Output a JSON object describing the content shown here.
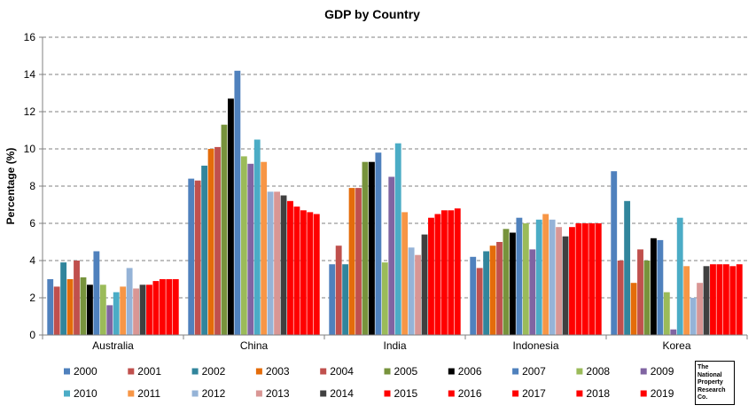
{
  "chart_data": {
    "type": "bar",
    "title": "GDP by Country",
    "ylabel": "Percentage (%)",
    "xlabel": "",
    "ylim": [
      0,
      16
    ],
    "yticks": [
      "0",
      "2",
      "4",
      "6",
      "8",
      "10",
      "12",
      "14",
      "16"
    ],
    "grid": true,
    "legend_position": "bottom",
    "categories": [
      "Australia",
      "China",
      "India",
      "Indonesia",
      "Korea"
    ],
    "series": [
      {
        "name": "2000",
        "color": "#4F81BD",
        "values": [
          3.0,
          8.4,
          3.8,
          4.2,
          8.8
        ]
      },
      {
        "name": "2001",
        "color": "#C0504D",
        "values": [
          2.6,
          8.3,
          4.8,
          3.6,
          4.0
        ]
      },
      {
        "name": "2002",
        "color": "#31859C",
        "values": [
          3.9,
          9.1,
          3.8,
          4.5,
          7.2
        ]
      },
      {
        "name": "2003",
        "color": "#E46C0A",
        "values": [
          3.0,
          10.0,
          7.9,
          4.8,
          2.8
        ]
      },
      {
        "name": "2004",
        "color": "#C0504D",
        "values": [
          4.0,
          10.1,
          7.9,
          5.0,
          4.6
        ]
      },
      {
        "name": "2005",
        "color": "#77933C",
        "values": [
          3.1,
          11.3,
          9.3,
          5.7,
          4.0
        ]
      },
      {
        "name": "2006",
        "color": "#000000",
        "values": [
          2.7,
          12.7,
          9.3,
          5.5,
          5.2
        ]
      },
      {
        "name": "2007",
        "color": "#4F81BD",
        "values": [
          4.5,
          14.2,
          9.8,
          6.3,
          5.1
        ]
      },
      {
        "name": "2008",
        "color": "#9BBB59",
        "values": [
          2.7,
          9.6,
          3.9,
          6.0,
          2.3
        ]
      },
      {
        "name": "2009",
        "color": "#8064A2",
        "values": [
          1.6,
          9.2,
          8.5,
          4.6,
          0.3
        ]
      },
      {
        "name": "2010",
        "color": "#4BACC6",
        "values": [
          2.3,
          10.5,
          10.3,
          6.2,
          6.3
        ]
      },
      {
        "name": "2011",
        "color": "#F79646",
        "values": [
          2.6,
          9.3,
          6.6,
          6.5,
          3.7
        ]
      },
      {
        "name": "2012",
        "color": "#95B3D7",
        "values": [
          3.6,
          7.7,
          4.7,
          6.2,
          2.0
        ]
      },
      {
        "name": "2013",
        "color": "#D99694",
        "values": [
          2.5,
          7.7,
          4.3,
          5.8,
          2.8
        ]
      },
      {
        "name": "2014",
        "color": "#404040",
        "values": [
          2.7,
          7.5,
          5.4,
          5.3,
          3.7
        ]
      },
      {
        "name": "2015",
        "color": "#FF0000",
        "values": [
          2.7,
          7.2,
          6.3,
          5.8,
          3.8
        ]
      },
      {
        "name": "2016",
        "color": "#FF0000",
        "values": [
          2.9,
          6.9,
          6.5,
          6.0,
          3.8
        ]
      },
      {
        "name": "2017",
        "color": "#FF0000",
        "values": [
          3.0,
          6.7,
          6.7,
          6.0,
          3.8
        ]
      },
      {
        "name": "2018",
        "color": "#FF0000",
        "values": [
          3.0,
          6.6,
          6.7,
          6.0,
          3.7
        ]
      },
      {
        "name": "2019",
        "color": "#FF0000",
        "values": [
          3.0,
          6.5,
          6.8,
          6.0,
          3.8
        ]
      }
    ]
  },
  "logo": {
    "lines": [
      "The",
      "National",
      "Property",
      "Research",
      "Co."
    ]
  }
}
